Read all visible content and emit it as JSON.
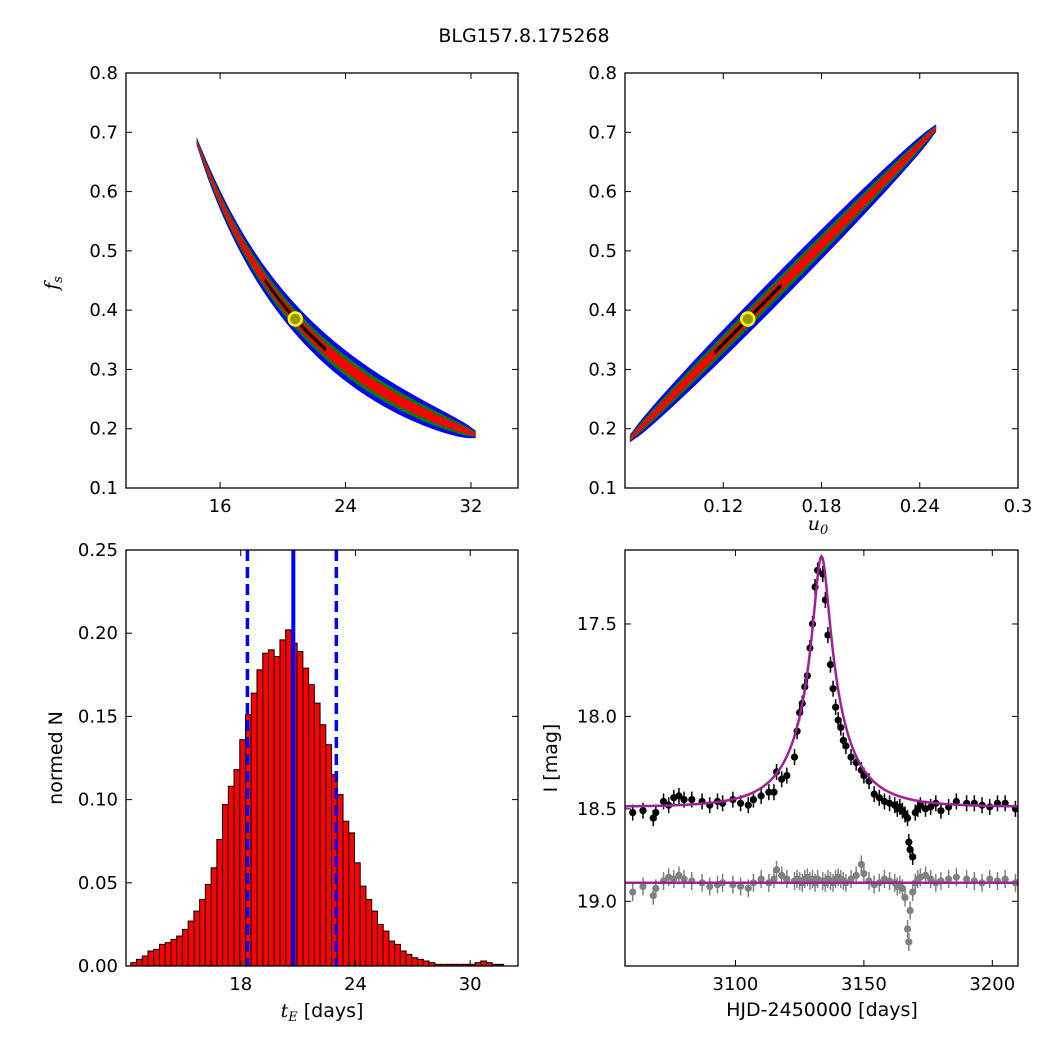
{
  "figure_title": "BLG157.8.175268",
  "colors": {
    "blue": "#0000ff",
    "green": "#008000",
    "red": "#ff0000",
    "black": "#000000",
    "marker_fill": "#9a9a00",
    "hist_bar": "#ff0000",
    "model_line": "#a0209a",
    "residual_points": "#808080"
  },
  "chart_data": [
    {
      "id": "tE-fs",
      "type": "heatmap",
      "xlabel": "",
      "ylabel": "f_s",
      "ylabel_main": "f",
      "ylabel_sub": "s",
      "xlim": [
        10,
        35
      ],
      "ylim": [
        0.1,
        0.8
      ],
      "xticks": [
        16,
        24,
        32
      ],
      "yticks": [
        0.1,
        0.2,
        0.3,
        0.4,
        0.5,
        0.6,
        0.7,
        0.8
      ],
      "relation": {
        "kind": "power",
        "x_ref": 20.8,
        "y_ref": 0.385,
        "exponent": -1.6
      },
      "x_span": [
        14.5,
        32.3
      ],
      "bands": [
        {
          "level": "3-sigma",
          "color": "blue",
          "half_width": 0.026
        },
        {
          "level": "2-sigma",
          "color": "green",
          "half_width": 0.017
        },
        {
          "level": "1-sigma",
          "color": "red",
          "half_width": 0.01
        },
        {
          "level": "best",
          "color": "black",
          "half_width": 0.004
        }
      ],
      "best_fit": {
        "x": 20.8,
        "y": 0.385
      }
    },
    {
      "id": "u0-fs",
      "type": "heatmap",
      "xlabel": "u_0",
      "xlabel_main": "u",
      "xlabel_sub": "0",
      "ylabel": "",
      "xlim": [
        0.06,
        0.3
      ],
      "ylim": [
        0.1,
        0.8
      ],
      "xticks": [
        0.12,
        0.18,
        0.24,
        0.3
      ],
      "yticks": [
        0.1,
        0.2,
        0.3,
        0.4,
        0.5,
        0.6,
        0.7,
        0.8
      ],
      "relation": {
        "kind": "linear",
        "x_ref": 0.135,
        "y_ref": 0.385,
        "slope": 2.8
      },
      "x_span": [
        0.063,
        0.25
      ],
      "bands": [
        {
          "level": "3-sigma",
          "color": "blue",
          "half_width": 0.026
        },
        {
          "level": "2-sigma",
          "color": "green",
          "half_width": 0.017
        },
        {
          "level": "1-sigma",
          "color": "red",
          "half_width": 0.01
        },
        {
          "level": "best",
          "color": "black",
          "half_width": 0.004
        }
      ],
      "best_fit": {
        "x": 0.135,
        "y": 0.385
      }
    },
    {
      "id": "tE-histogram",
      "type": "bar",
      "xlabel": "t_E [days]",
      "xlabel_main": "t",
      "xlabel_sub": "E",
      "xlabel_unit": "[days]",
      "ylabel": "normed N",
      "xlim": [
        12,
        32.5
      ],
      "ylim": [
        0,
        0.25
      ],
      "xticks": [
        18,
        24,
        30
      ],
      "yticks": [
        0.0,
        0.05,
        0.1,
        0.15,
        0.2,
        0.25
      ],
      "yticklabels": [
        "0.00",
        "0.05",
        "0.10",
        "0.15",
        "0.20",
        "0.25"
      ],
      "bin_start": 12.25,
      "bin_width": 0.3,
      "values": [
        0.002,
        0.004,
        0.006,
        0.009,
        0.01,
        0.013,
        0.014,
        0.016,
        0.018,
        0.022,
        0.027,
        0.033,
        0.04,
        0.049,
        0.059,
        0.076,
        0.097,
        0.108,
        0.118,
        0.136,
        0.151,
        0.164,
        0.178,
        0.188,
        0.19,
        0.186,
        0.196,
        0.202,
        0.194,
        0.189,
        0.179,
        0.169,
        0.158,
        0.145,
        0.133,
        0.115,
        0.103,
        0.087,
        0.08,
        0.062,
        0.048,
        0.04,
        0.033,
        0.025,
        0.021,
        0.015,
        0.013,
        0.009,
        0.007,
        0.005,
        0.004,
        0.003,
        0.002,
        0.001,
        0.001,
        0.001,
        0.001,
        0.001,
        0.001,
        0.001,
        0.002,
        0.003,
        0.002,
        0.001,
        0.001
      ],
      "median": 20.75,
      "bounds": [
        18.35,
        23.0
      ]
    },
    {
      "id": "light-curve",
      "type": "scatter",
      "xlabel": "HJD-2450000 [days]",
      "ylabel": "I [mag]",
      "xlim": [
        3057,
        3210
      ],
      "ylim": [
        19.35,
        17.1
      ],
      "y_inverted": true,
      "xticks": [
        3100,
        3150,
        3200
      ],
      "yticks": [
        17.5,
        18.0,
        18.5,
        19.0
      ],
      "yticklabels": [
        "17.5",
        "18.0",
        "18.5",
        "19.0"
      ],
      "model": {
        "t0": 3133.5,
        "tE": 20.8,
        "u0": 0.135,
        "fs": 0.385,
        "base_mag": 18.49
      },
      "residual_baseline": 18.9,
      "data": [
        [
          3060,
          18.52
        ],
        [
          3064,
          18.51
        ],
        [
          3068,
          18.55
        ],
        [
          3069,
          18.52
        ],
        [
          3072,
          18.46
        ],
        [
          3074,
          18.48
        ],
        [
          3076,
          18.44
        ],
        [
          3078,
          18.43
        ],
        [
          3080,
          18.45
        ],
        [
          3083,
          18.45
        ],
        [
          3087,
          18.46
        ],
        [
          3090,
          18.48
        ],
        [
          3093,
          18.46
        ],
        [
          3095,
          18.47
        ],
        [
          3099,
          18.45
        ],
        [
          3102,
          18.47
        ],
        [
          3105,
          18.48
        ],
        [
          3107,
          18.45
        ],
        [
          3110,
          18.43
        ],
        [
          3113,
          18.41
        ],
        [
          3115,
          18.41
        ],
        [
          3116,
          18.3
        ],
        [
          3118,
          18.34
        ],
        [
          3120,
          18.32
        ],
        [
          3123,
          18.22
        ],
        [
          3124,
          18.08
        ],
        [
          3125,
          17.98
        ],
        [
          3126,
          17.93
        ],
        [
          3127,
          17.84
        ],
        [
          3128,
          17.78
        ],
        [
          3129,
          17.63
        ],
        [
          3130,
          17.5
        ],
        [
          3131,
          17.3
        ],
        [
          3132,
          17.21
        ],
        [
          3134,
          17.23
        ],
        [
          3135,
          17.37
        ],
        [
          3136,
          17.56
        ],
        [
          3137,
          17.72
        ],
        [
          3138,
          17.85
        ],
        [
          3139,
          17.95
        ],
        [
          3140,
          18.02
        ],
        [
          3141,
          18.06
        ],
        [
          3142,
          18.13
        ],
        [
          3143,
          18.16
        ],
        [
          3145,
          18.22
        ],
        [
          3147,
          18.25
        ],
        [
          3149,
          18.29
        ],
        [
          3150,
          18.32
        ],
        [
          3152,
          18.35
        ],
        [
          3154,
          18.42
        ],
        [
          3156,
          18.44
        ],
        [
          3158,
          18.46
        ],
        [
          3160,
          18.47
        ],
        [
          3162,
          18.48
        ],
        [
          3163,
          18.5
        ],
        [
          3164,
          18.49
        ],
        [
          3165,
          18.51
        ],
        [
          3166,
          18.53
        ],
        [
          3167,
          18.55
        ],
        [
          3167.5,
          18.68
        ],
        [
          3168,
          18.72
        ],
        [
          3169,
          18.76
        ],
        [
          3170,
          18.52
        ],
        [
          3171,
          18.5
        ],
        [
          3172,
          18.48
        ],
        [
          3174,
          18.5
        ],
        [
          3176,
          18.49
        ],
        [
          3178,
          18.47
        ],
        [
          3180,
          18.51
        ],
        [
          3183,
          18.49
        ],
        [
          3186,
          18.46
        ],
        [
          3190,
          18.47
        ],
        [
          3193,
          18.47
        ],
        [
          3196,
          18.48
        ],
        [
          3199,
          18.49
        ],
        [
          3202,
          18.47
        ],
        [
          3205,
          18.47
        ],
        [
          3209,
          18.5
        ]
      ],
      "residuals": [
        [
          3060,
          18.95
        ],
        [
          3064,
          18.92
        ],
        [
          3068,
          18.97
        ],
        [
          3069,
          18.93
        ],
        [
          3072,
          18.89
        ],
        [
          3074,
          18.87
        ],
        [
          3076,
          18.88
        ],
        [
          3078,
          18.86
        ],
        [
          3080,
          18.88
        ],
        [
          3083,
          18.89
        ],
        [
          3087,
          18.9
        ],
        [
          3090,
          18.92
        ],
        [
          3093,
          18.91
        ],
        [
          3095,
          18.9
        ],
        [
          3099,
          18.91
        ],
        [
          3102,
          18.92
        ],
        [
          3105,
          18.93
        ],
        [
          3107,
          18.9
        ],
        [
          3110,
          18.88
        ],
        [
          3113,
          18.9
        ],
        [
          3115,
          18.88
        ],
        [
          3116,
          18.83
        ],
        [
          3118,
          18.86
        ],
        [
          3120,
          18.88
        ],
        [
          3123,
          18.89
        ],
        [
          3124,
          18.88
        ],
        [
          3125,
          18.89
        ],
        [
          3126,
          18.9
        ],
        [
          3127,
          18.88
        ],
        [
          3128,
          18.87
        ],
        [
          3129,
          18.89
        ],
        [
          3130,
          18.88
        ],
        [
          3131,
          18.9
        ],
        [
          3132,
          18.88
        ],
        [
          3134,
          18.89
        ],
        [
          3135,
          18.9
        ],
        [
          3136,
          18.88
        ],
        [
          3137,
          18.89
        ],
        [
          3138,
          18.9
        ],
        [
          3139,
          18.88
        ],
        [
          3140,
          18.87
        ],
        [
          3141,
          18.88
        ],
        [
          3142,
          18.89
        ],
        [
          3143,
          18.9
        ],
        [
          3145,
          18.88
        ],
        [
          3147,
          18.86
        ],
        [
          3149,
          18.8
        ],
        [
          3150,
          18.85
        ],
        [
          3152,
          18.89
        ],
        [
          3154,
          18.91
        ],
        [
          3156,
          18.9
        ],
        [
          3158,
          18.88
        ],
        [
          3160,
          18.89
        ],
        [
          3162,
          18.9
        ],
        [
          3163,
          18.92
        ],
        [
          3164,
          18.91
        ],
        [
          3165,
          18.93
        ],
        [
          3166,
          18.98
        ],
        [
          3167,
          19.15
        ],
        [
          3167.5,
          19.22
        ],
        [
          3168,
          19.05
        ],
        [
          3169,
          18.95
        ],
        [
          3170,
          18.9
        ],
        [
          3171,
          18.88
        ],
        [
          3172,
          18.87
        ],
        [
          3174,
          18.86
        ],
        [
          3176,
          18.88
        ],
        [
          3178,
          18.9
        ],
        [
          3180,
          18.89
        ],
        [
          3183,
          18.88
        ],
        [
          3186,
          18.87
        ],
        [
          3190,
          18.88
        ],
        [
          3193,
          18.89
        ],
        [
          3196,
          18.9
        ],
        [
          3199,
          18.88
        ],
        [
          3202,
          18.89
        ],
        [
          3205,
          18.88
        ],
        [
          3209,
          18.9
        ]
      ]
    }
  ]
}
